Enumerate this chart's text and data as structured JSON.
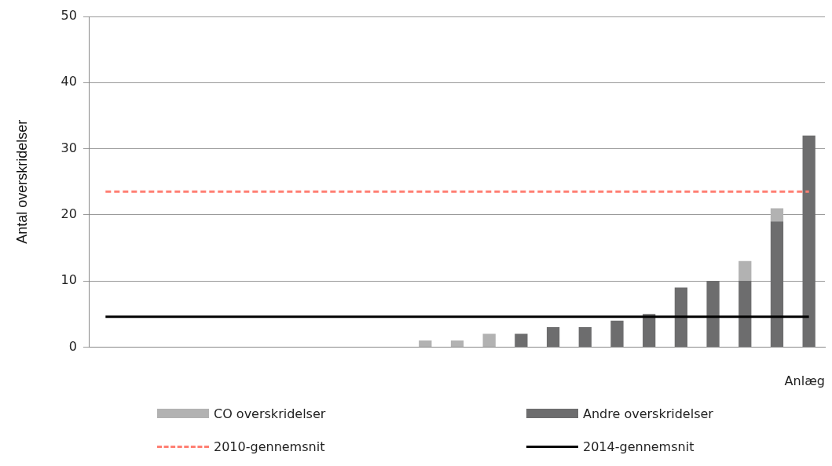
{
  "chart_data": {
    "type": "bar",
    "ylabel": "Antal overskridelser",
    "xlabel": "Anlæg",
    "stacked": true,
    "grid": "y",
    "legend": "bottom",
    "marker": "none",
    "categories": [
      null,
      null,
      null,
      null,
      null,
      null,
      null,
      null,
      null,
      null,
      null,
      null,
      null,
      null,
      null,
      null,
      null,
      null,
      null,
      null,
      null,
      null,
      null
    ],
    "ylim": [
      0,
      50
    ],
    "yticks": [
      0,
      10,
      20,
      30,
      40,
      50
    ],
    "series": [
      {
        "name": "Andre overskridelser",
        "color": "#6d6d6e",
        "values": [
          0,
          0,
          0,
          0,
          0,
          0,
          0,
          0,
          0,
          0,
          0,
          0,
          0,
          2,
          3,
          3,
          4,
          5,
          9,
          10,
          10,
          19,
          32
        ]
      },
      {
        "name": "CO overskridelser",
        "color": "#b2b2b2",
        "values": [
          0,
          0,
          0,
          0,
          0,
          0,
          0,
          0,
          0,
          0,
          1,
          1,
          2,
          0,
          0,
          0,
          0,
          0,
          0,
          0,
          3,
          2,
          0
        ]
      },
      {
        "name": "2010-gennemsnit",
        "type": "line",
        "line_style": "dashed",
        "color": "#ff7f73",
        "values": [
          23.5,
          23.5,
          23.5,
          23.5,
          23.5,
          23.5,
          23.5,
          23.5,
          23.5,
          23.5,
          23.5,
          23.5,
          23.5,
          23.5,
          23.5,
          23.5,
          23.5,
          23.5,
          23.5,
          23.5,
          23.5,
          23.5,
          23.5
        ]
      },
      {
        "name": "2014-gennemsnit",
        "type": "line",
        "line_style": "solid",
        "color": "#000000",
        "values": [
          4.6,
          4.6,
          4.6,
          4.6,
          4.6,
          4.6,
          4.6,
          4.6,
          4.6,
          4.6,
          4.6,
          4.6,
          4.6,
          4.6,
          4.6,
          4.6,
          4.6,
          4.6,
          4.6,
          4.6,
          4.6,
          4.6,
          4.6
        ]
      }
    ]
  }
}
